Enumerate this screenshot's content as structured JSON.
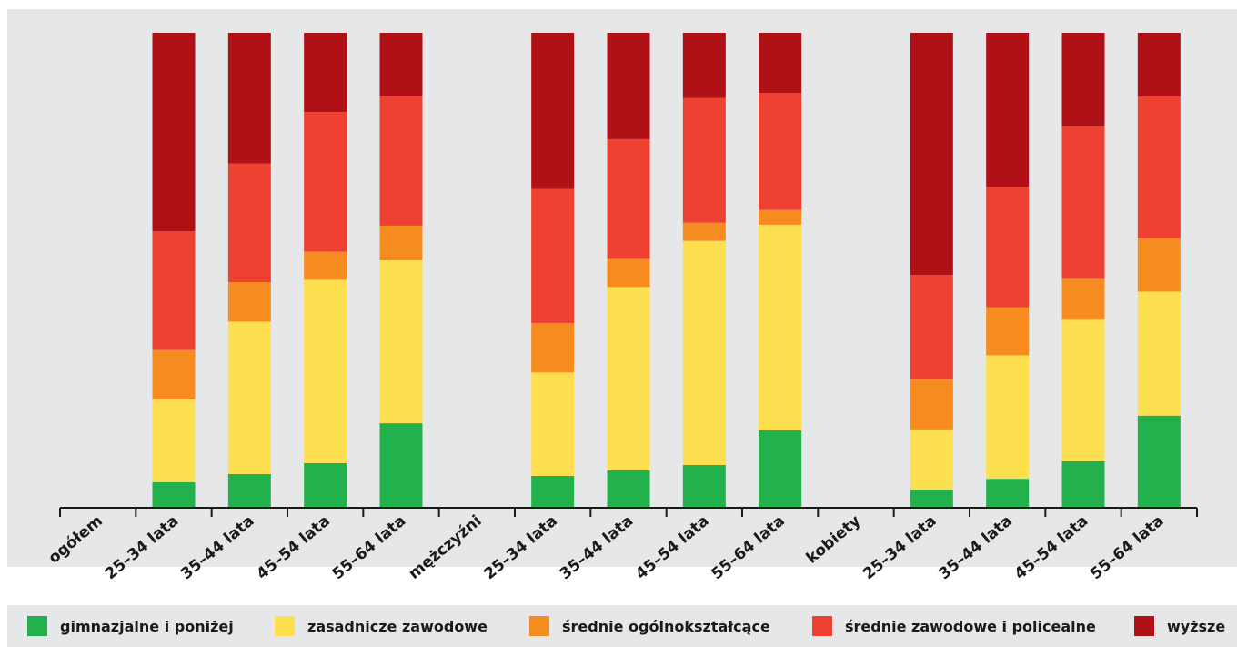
{
  "chart_data": {
    "type": "bar",
    "stacked": true,
    "normalized_to": 100,
    "ylim": [
      0,
      100
    ],
    "grid": false,
    "legend_position": "bottom",
    "categories": [
      "ogółem",
      "25–34 lata",
      "35–44 lata",
      "45–54 lata",
      "55–64 lata",
      "mężczyźni",
      "25–34 lata",
      "35–44 lata",
      "45–54 lata",
      "55–64 lata",
      "kobiety",
      "25–34 lata",
      "35–44 lata",
      "45–54 lata",
      "55–64 lata"
    ],
    "series": [
      {
        "name": "gimnazjalne i poniżej",
        "color": "#23b14d",
        "values": [
          null,
          5.4,
          7.1,
          9.4,
          17.8,
          null,
          6.7,
          7.9,
          9.0,
          16.3,
          null,
          3.8,
          6.1,
          9.8,
          19.4
        ]
      },
      {
        "name": "zasadnicze zawodowe",
        "color": "#fedf4f",
        "values": [
          null,
          17.4,
          32.1,
          38.6,
          34.3,
          null,
          21.8,
          38.6,
          47.2,
          43.3,
          null,
          12.7,
          26.0,
          29.8,
          26.1
        ]
      },
      {
        "name": "średnie ogólnokształcące",
        "color": "#f68b1f",
        "values": [
          null,
          10.4,
          8.3,
          5.9,
          7.3,
          null,
          10.4,
          5.9,
          3.8,
          3.1,
          null,
          10.6,
          10.1,
          8.6,
          11.3
        ]
      },
      {
        "name": "średnie zawodowe i policealne",
        "color": "#ef4131",
        "values": [
          null,
          25.0,
          25.0,
          29.4,
          27.3,
          null,
          28.2,
          25.2,
          26.3,
          24.6,
          null,
          21.9,
          25.3,
          32.1,
          29.8
        ]
      },
      {
        "name": "wyższe",
        "color": "#b01116",
        "values": [
          null,
          41.8,
          27.5,
          16.7,
          13.3,
          null,
          32.9,
          22.4,
          13.7,
          12.7,
          null,
          51.0,
          32.5,
          19.7,
          13.4
        ]
      }
    ]
  }
}
